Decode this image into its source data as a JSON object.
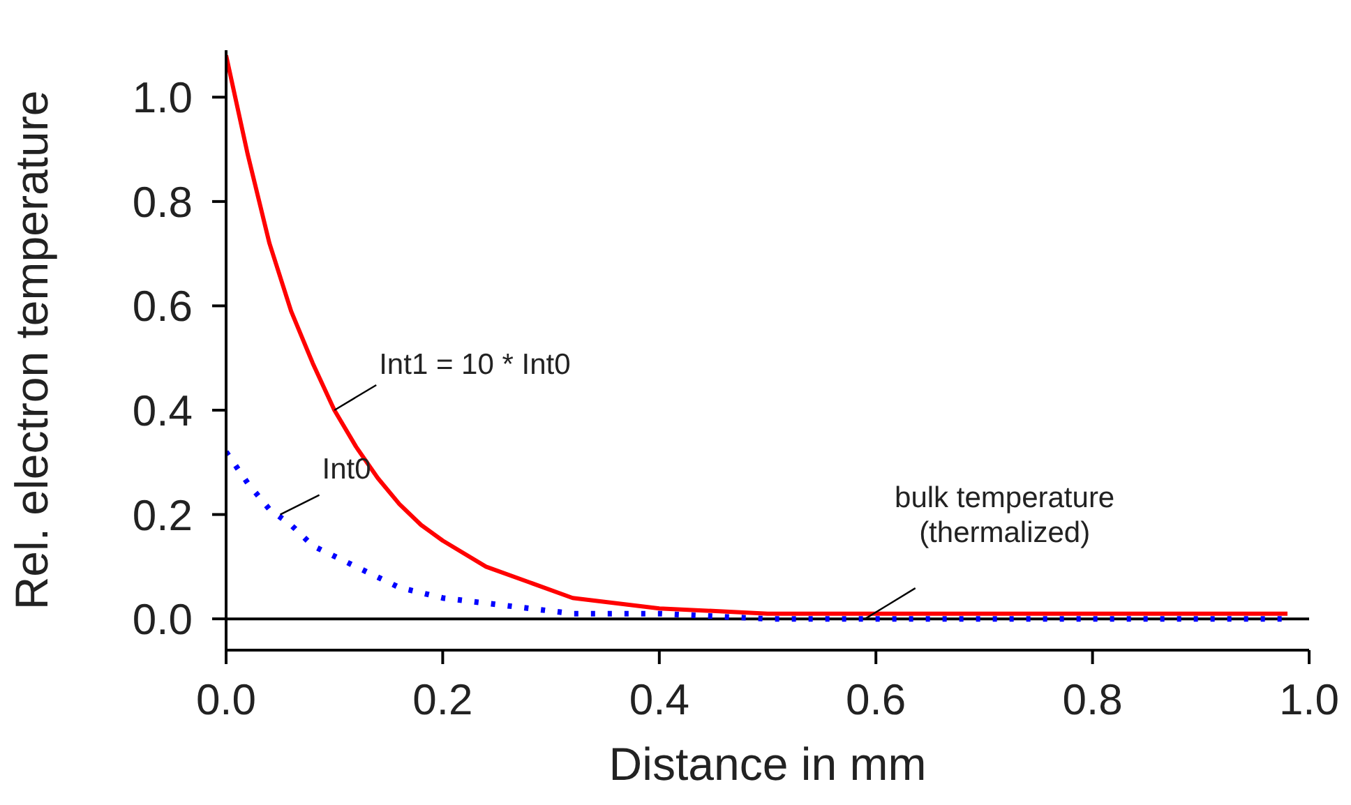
{
  "chart_data": {
    "type": "line",
    "xlabel": "Distance in mm",
    "ylabel": "Rel. electron temperature",
    "x": [
      0,
      0.02,
      0.04,
      0.06,
      0.08,
      0.1,
      0.12,
      0.14,
      0.16,
      0.18,
      0.2,
      0.24,
      0.28,
      0.32,
      0.36,
      0.4,
      0.5,
      0.6,
      0.7,
      0.8,
      0.9,
      0.98
    ],
    "series": [
      {
        "color": "#ff0000",
        "line_style": "solid",
        "values": [
          1.08,
          0.89,
          0.72,
          0.59,
          0.49,
          0.4,
          0.33,
          0.27,
          0.22,
          0.18,
          0.15,
          0.1,
          0.07,
          0.04,
          0.03,
          0.02,
          0.01,
          0.01,
          0.01,
          0.01,
          0.01,
          0.01
        ]
      },
      {
        "color": "#0000ff",
        "line_style": "dotted",
        "values": [
          0.32,
          0.26,
          0.21,
          0.18,
          0.14,
          0.12,
          0.1,
          0.08,
          0.06,
          0.05,
          0.04,
          0.03,
          0.02,
          0.01,
          0.01,
          0.01,
          0,
          0,
          0,
          0,
          0,
          0
        ]
      }
    ],
    "xlim": [
      0,
      1
    ],
    "ylim": [
      -0.06,
      1.09
    ],
    "xticks": [
      {
        "value": 0,
        "label": "0.0"
      },
      {
        "value": 0.2,
        "label": "0.2"
      },
      {
        "value": 0.4,
        "label": "0.4"
      },
      {
        "value": 0.6,
        "label": "0.6"
      },
      {
        "value": 0.8,
        "label": "0.8"
      },
      {
        "value": 1,
        "label": "1.0"
      }
    ],
    "yticks": [
      {
        "value": 0,
        "label": "0.0"
      },
      {
        "value": 0.2,
        "label": "0.2"
      },
      {
        "value": 0.4,
        "label": "0.4"
      },
      {
        "value": 0.6,
        "label": "0.6"
      },
      {
        "value": 0.8,
        "label": "0.8"
      },
      {
        "value": 1,
        "label": "1.0"
      }
    ],
    "ref_lines": [
      {
        "axis": "y",
        "value": 0,
        "color": "#000000"
      }
    ],
    "annotations": [
      {
        "text": "Int1 = 10 * Int0",
        "x": 0.1,
        "y": 0.4
      },
      {
        "text": "Int0",
        "x": 0.05,
        "y": 0.2
      },
      {
        "text": "bulk temperature\n(thermalized)",
        "x": 0.59,
        "y": 0
      }
    ],
    "grid": false,
    "legend": false,
    "marker": "none"
  }
}
